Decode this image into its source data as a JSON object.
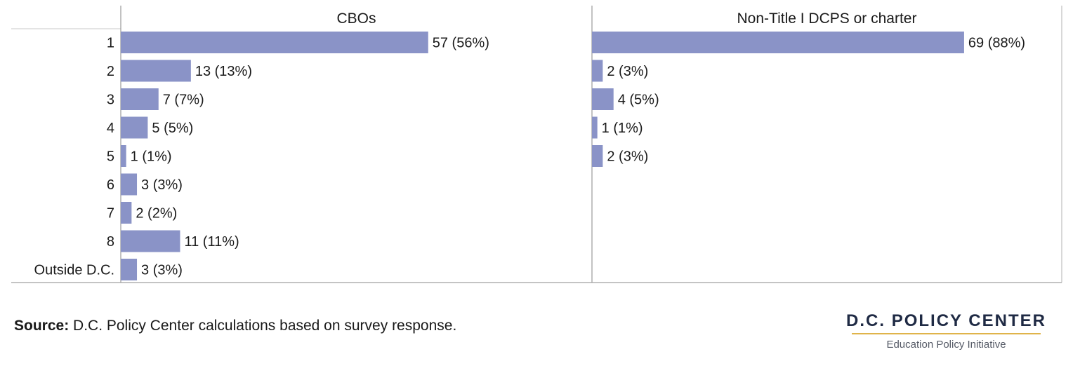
{
  "chart_data": {
    "type": "bar",
    "orientation": "horizontal",
    "categories": [
      "1",
      "2",
      "3",
      "4",
      "5",
      "6",
      "7",
      "8",
      "Outside D.C."
    ],
    "panels": [
      {
        "title": "CBOs",
        "counts": [
          57,
          13,
          7,
          5,
          1,
          3,
          2,
          11,
          3
        ],
        "labels": [
          "57 (56%)",
          "13 (13%)",
          "7 (7%)",
          "5 (5%)",
          "1 (1%)",
          "3 (3%)",
          "2 (2%)",
          "11 (11%)",
          "3 (3%)"
        ]
      },
      {
        "title": "Non-Title I DCPS or charter",
        "counts": [
          69,
          2,
          4,
          1,
          2,
          0,
          0,
          0,
          0
        ],
        "labels": [
          "69 (88%)",
          "2 (3%)",
          "4 (5%)",
          "1 (1%)",
          "2 (3%)",
          "",
          "",
          "",
          ""
        ]
      }
    ],
    "bar_color": "#8a93c7",
    "grid": false
  },
  "footer": {
    "source_label": "Source:",
    "source_text": " D.C. Policy Center calculations based on survey response.",
    "logo_name": "D.C. POLICY CENTER",
    "logo_tagline": "Education Policy Initiative"
  }
}
